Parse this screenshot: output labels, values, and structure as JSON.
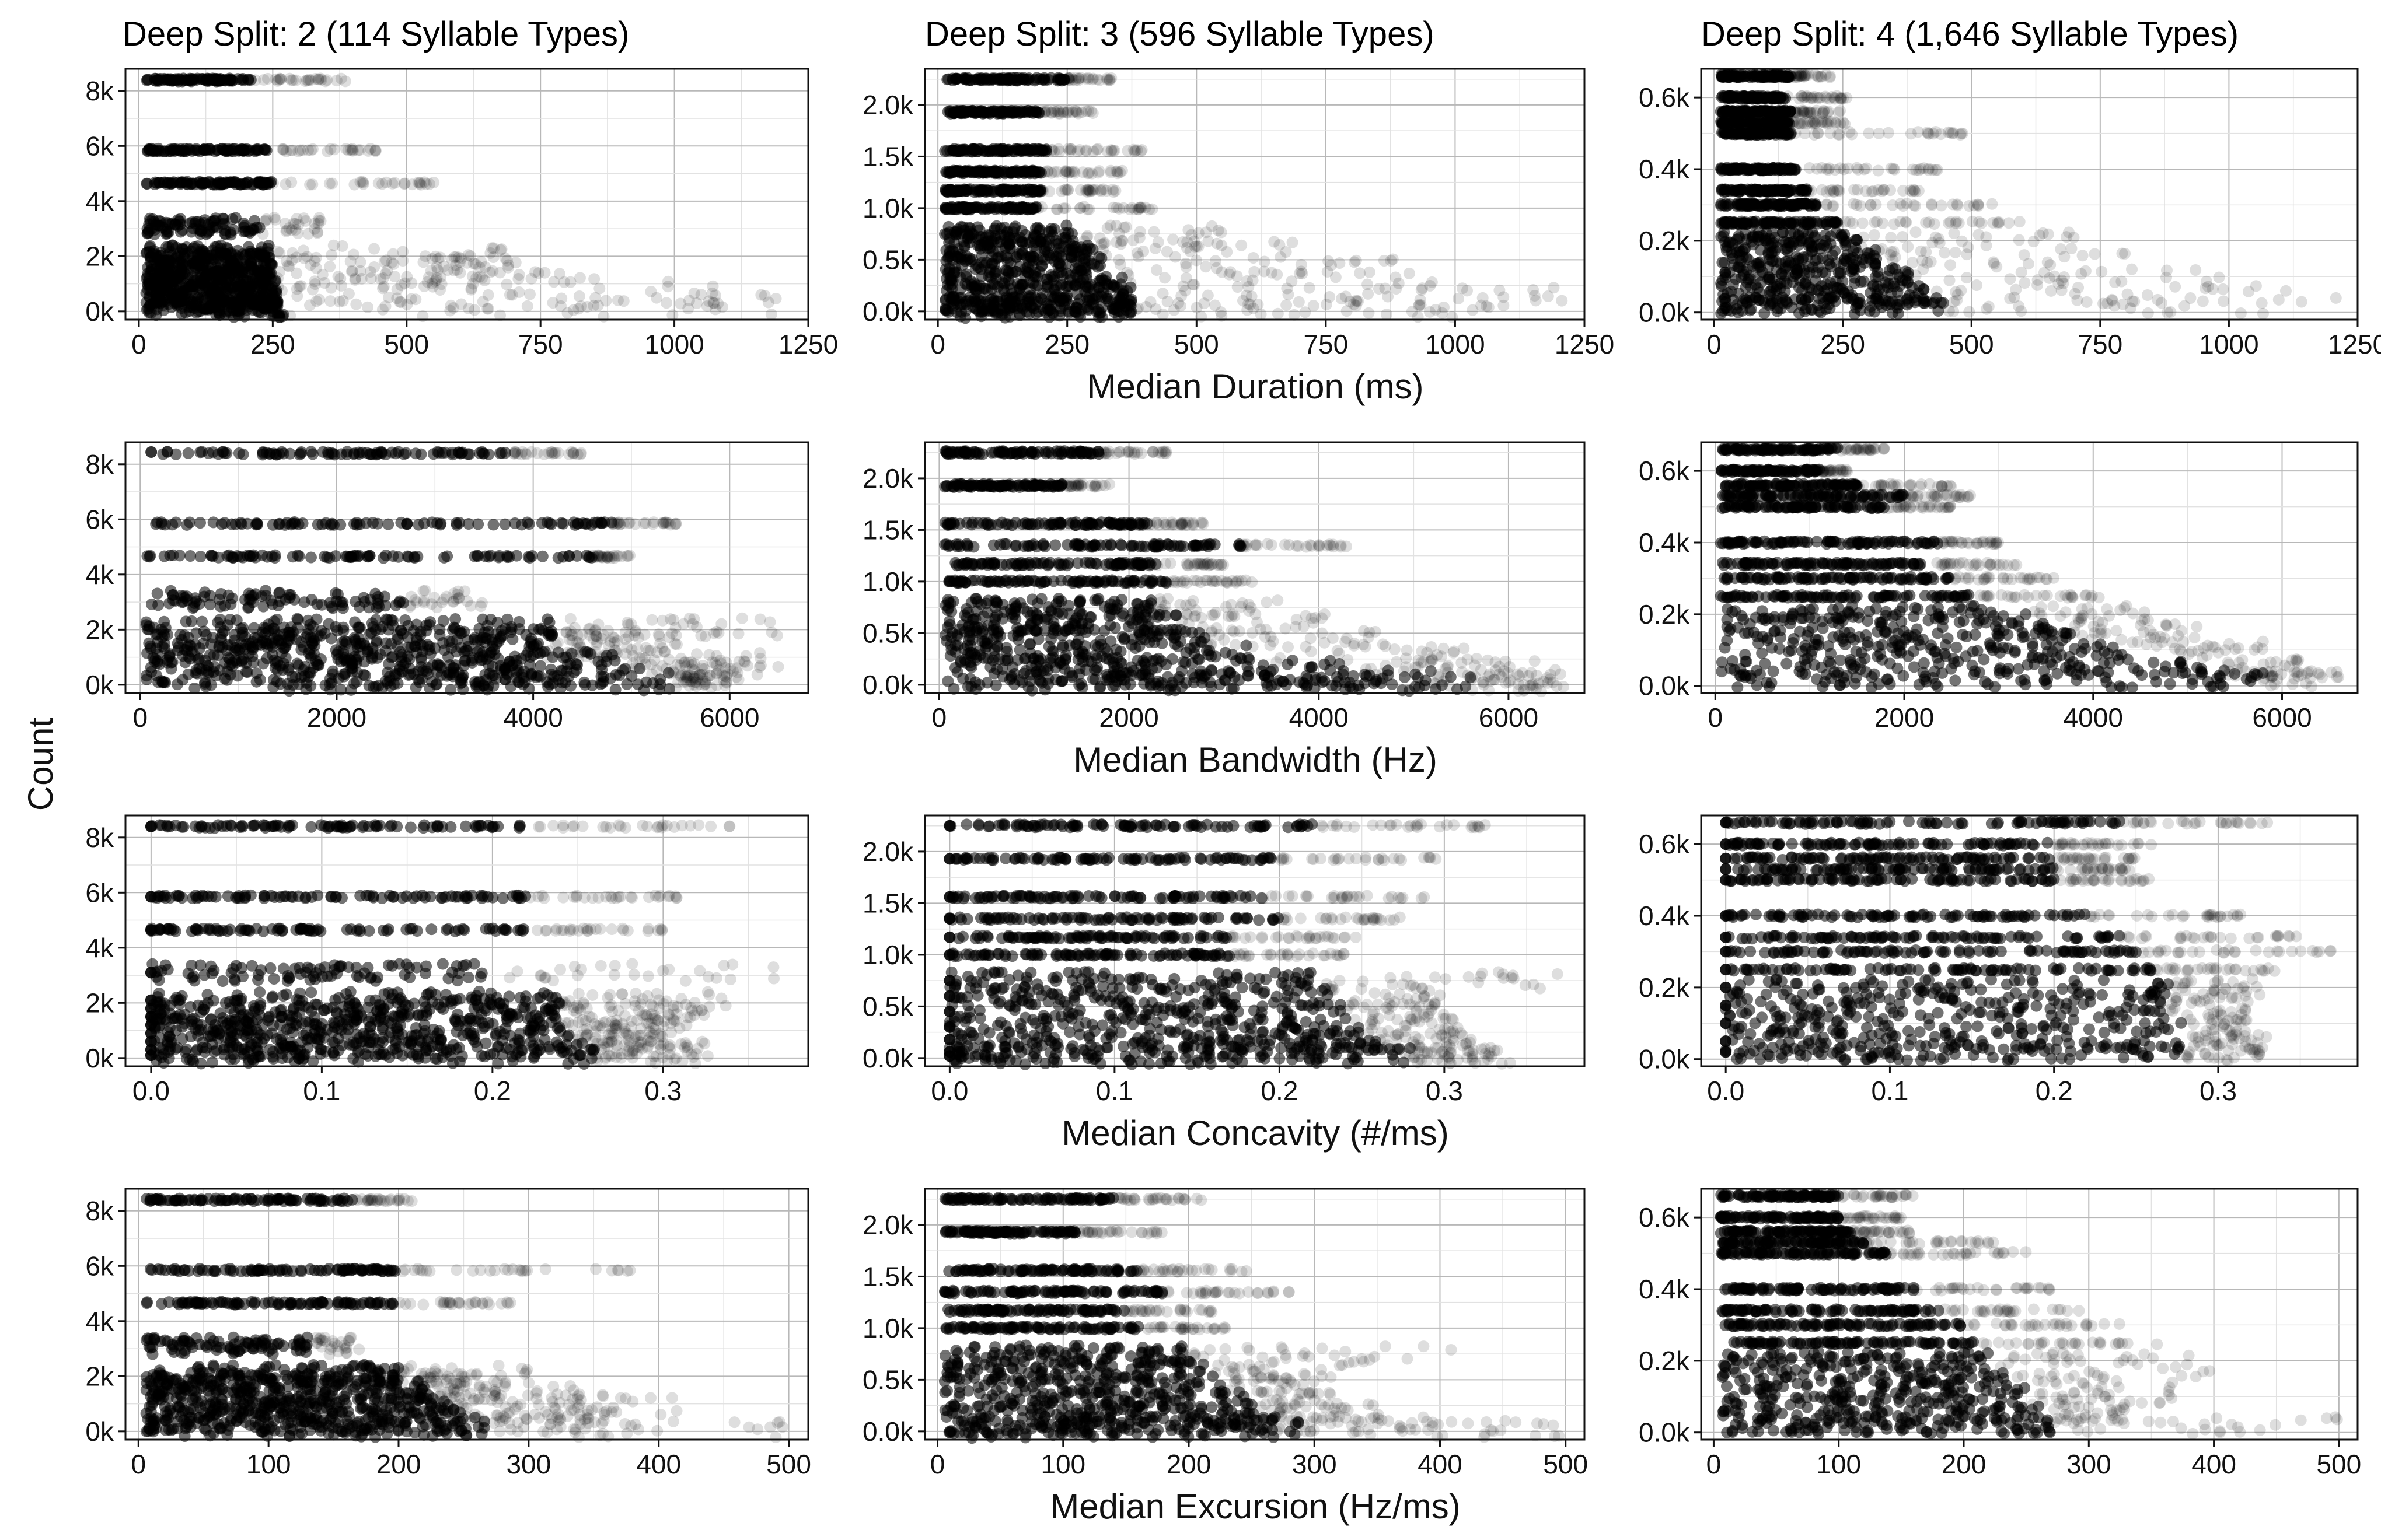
{
  "figure": {
    "column_titles": [
      "Deep Split: 2 (114 Syllable Types)",
      "Deep Split: 3 (596 Syllable Types)",
      "Deep Split: 4 (1,646 Syllable Types)"
    ],
    "row_xlabels": [
      "Median Duration (ms)",
      "Median Bandwidth (Hz)",
      "Median Concavity (#/ms)",
      "Median Excursion (Hz/ms)"
    ],
    "ylabel": "Count"
  },
  "chart_data": [
    {
      "type": "scatter",
      "row": 0,
      "col": 0,
      "title": "Deep Split: 2 (114 Syllable Types)",
      "xlabel": "",
      "ylabel": "Count",
      "xlim": [
        -25,
        1250
      ],
      "ylim": [
        -300,
        8800
      ],
      "x_ticks": [
        0,
        250,
        500,
        750,
        1000,
        1250
      ],
      "x_tick_labels": [
        "0",
        "250",
        "500",
        "750",
        "1000",
        "1250"
      ],
      "y_ticks": [
        0,
        2000,
        4000,
        6000,
        8000
      ],
      "y_tick_labels": [
        "0k",
        "2k",
        "4k",
        "6k",
        "8k"
      ],
      "count_levels": [
        8400,
        5850,
        4650,
        3100,
        2100,
        1800,
        1500,
        1200,
        900,
        600,
        300,
        100
      ],
      "x_max_per_level": [
        390,
        450,
        560,
        340,
        700,
        690,
        720,
        800,
        1000,
        1100,
        1210,
        1200
      ],
      "x_core_per_level": [
        210,
        240,
        250,
        230,
        250,
        250,
        250,
        250,
        260,
        260,
        260,
        270
      ],
      "grid": true
    },
    {
      "type": "scatter",
      "row": 0,
      "col": 1,
      "title": "Deep Split: 3 (596 Syllable Types)",
      "xlabel": "Median Duration (ms)",
      "ylabel": "",
      "xlim": [
        -25,
        1250
      ],
      "ylim": [
        -80,
        2350
      ],
      "x_ticks": [
        0,
        250,
        500,
        750,
        1000,
        1250
      ],
      "x_tick_labels": [
        "0",
        "250",
        "500",
        "750",
        "1000",
        "1250"
      ],
      "y_ticks": [
        0,
        500,
        1000,
        1500,
        2000
      ],
      "y_tick_labels": [
        "0.0k",
        "0.5k",
        "1.0k",
        "1.5k",
        "2.0k"
      ],
      "count_levels": [
        2250,
        1930,
        1560,
        1350,
        1170,
        1000,
        750,
        600,
        450,
        300,
        180,
        60,
        20
      ],
      "x_max_per_level": [
        340,
        300,
        400,
        360,
        350,
        420,
        560,
        700,
        900,
        1000,
        1210,
        1100,
        1000
      ],
      "x_core_per_level": [
        250,
        200,
        210,
        200,
        200,
        190,
        260,
        300,
        320,
        360,
        380,
        380,
        380
      ],
      "grid": true
    },
    {
      "type": "scatter",
      "row": 0,
      "col": 2,
      "title": "Deep Split: 4 (1,646 Syllable Types)",
      "xlabel": "",
      "ylabel": "",
      "xlim": [
        -25,
        1250
      ],
      "ylim": [
        -20,
        680
      ],
      "x_ticks": [
        0,
        250,
        500,
        750,
        1000,
        1250
      ],
      "x_tick_labels": [
        "0",
        "250",
        "500",
        "750",
        "1000",
        "1250"
      ],
      "y_ticks": [
        0,
        200,
        400,
        600
      ],
      "y_tick_labels": [
        "0.0k",
        "0.2k",
        "0.4k",
        "0.6k"
      ],
      "count_levels": [
        660,
        600,
        560,
        530,
        500,
        400,
        340,
        300,
        250,
        200,
        150,
        100,
        50,
        20
      ],
      "x_max_per_level": [
        230,
        260,
        250,
        270,
        490,
        440,
        400,
        540,
        600,
        700,
        850,
        1000,
        1210,
        1100
      ],
      "x_core_per_level": [
        150,
        140,
        150,
        150,
        150,
        160,
        180,
        200,
        240,
        280,
        320,
        380,
        420,
        450
      ],
      "grid": true
    },
    {
      "type": "scatter",
      "row": 1,
      "col": 0,
      "title": "",
      "xlabel": "",
      "ylabel": "Count",
      "xlim": [
        -150,
        6800
      ],
      "ylim": [
        -300,
        8800
      ],
      "x_ticks": [
        0,
        2000,
        4000,
        6000
      ],
      "x_tick_labels": [
        "0",
        "2000",
        "4000",
        "6000"
      ],
      "y_ticks": [
        0,
        2000,
        4000,
        6000,
        8000
      ],
      "y_tick_labels": [
        "0k",
        "2k",
        "4k",
        "6k",
        "8k"
      ],
      "count_levels": [
        8400,
        5850,
        4650,
        3100,
        2100,
        1800,
        1500,
        1200,
        900,
        600,
        300,
        100
      ],
      "x_max_per_level": [
        4500,
        5500,
        5000,
        3500,
        6500,
        6000,
        5500,
        5200,
        6500,
        6300,
        6100,
        6000
      ],
      "x_core_per_level": [
        3800,
        4800,
        4600,
        2700,
        4300,
        4200,
        4200,
        4100,
        5000,
        5200,
        5400,
        5400
      ],
      "grid": true
    },
    {
      "type": "scatter",
      "row": 1,
      "col": 1,
      "title": "",
      "xlabel": "Median Bandwidth (Hz)",
      "ylabel": "",
      "xlim": [
        -150,
        6800
      ],
      "ylim": [
        -80,
        2350
      ],
      "x_ticks": [
        0,
        2000,
        4000,
        6000
      ],
      "x_tick_labels": [
        "0",
        "2000",
        "4000",
        "6000"
      ],
      "y_ticks": [
        0,
        500,
        1000,
        1500,
        2000
      ],
      "y_tick_labels": [
        "0.0k",
        "0.5k",
        "1.0k",
        "1.5k",
        "2.0k"
      ],
      "count_levels": [
        2250,
        1930,
        1560,
        1350,
        1170,
        1000,
        750,
        600,
        450,
        300,
        180,
        60,
        20
      ],
      "x_max_per_level": [
        2400,
        1800,
        2800,
        4300,
        3000,
        3300,
        3600,
        4200,
        4800,
        5600,
        6300,
        6600,
        6500
      ],
      "x_core_per_level": [
        1700,
        1300,
        2200,
        3200,
        2300,
        2400,
        2300,
        2500,
        2800,
        3300,
        4300,
        5200,
        5600
      ],
      "grid": true
    },
    {
      "type": "scatter",
      "row": 1,
      "col": 2,
      "title": "",
      "xlabel": "",
      "ylabel": "",
      "xlim": [
        -150,
        6800
      ],
      "ylim": [
        -20,
        680
      ],
      "x_ticks": [
        0,
        2000,
        4000,
        6000
      ],
      "x_tick_labels": [
        "0",
        "2000",
        "4000",
        "6000"
      ],
      "y_ticks": [
        0,
        200,
        400,
        600
      ],
      "y_tick_labels": [
        "0.0k",
        "0.2k",
        "0.4k",
        "0.6k"
      ],
      "count_levels": [
        660,
        600,
        560,
        530,
        500,
        400,
        340,
        300,
        250,
        200,
        150,
        100,
        50,
        20
      ],
      "x_max_per_level": [
        1800,
        1400,
        2500,
        2700,
        2500,
        3000,
        3200,
        3600,
        4200,
        4600,
        5200,
        5800,
        6300,
        6600
      ],
      "x_core_per_level": [
        1300,
        1100,
        1500,
        2000,
        1800,
        2400,
        2300,
        2500,
        2800,
        3300,
        3800,
        4400,
        5200,
        5800
      ],
      "grid": true
    },
    {
      "type": "scatter",
      "row": 2,
      "col": 0,
      "title": "",
      "xlabel": "",
      "ylabel": "Count",
      "xlim": [
        -0.015,
        0.385
      ],
      "ylim": [
        -300,
        8800
      ],
      "x_ticks": [
        0,
        0.1,
        0.2,
        0.3
      ],
      "x_tick_labels": [
        "0.0",
        "0.1",
        "0.2",
        "0.3"
      ],
      "y_ticks": [
        0,
        2000,
        4000,
        6000,
        8000
      ],
      "y_tick_labels": [
        "0k",
        "2k",
        "4k",
        "6k",
        "8k"
      ],
      "count_levels": [
        8400,
        5850,
        4650,
        3100,
        2100,
        1800,
        1500,
        1200,
        900,
        600,
        300,
        100
      ],
      "x_max_per_level": [
        0.34,
        0.31,
        0.3,
        0.37,
        0.34,
        0.33,
        0.32,
        0.31,
        0.3,
        0.3,
        0.33,
        0.32
      ],
      "x_core_per_level": [
        0.22,
        0.22,
        0.22,
        0.2,
        0.24,
        0.24,
        0.24,
        0.24,
        0.25,
        0.25,
        0.26,
        0.26
      ],
      "grid": true
    },
    {
      "type": "scatter",
      "row": 2,
      "col": 1,
      "title": "",
      "xlabel": "Median Concavity (#/ms)",
      "ylabel": "",
      "xlim": [
        -0.015,
        0.385
      ],
      "ylim": [
        -80,
        2350
      ],
      "x_ticks": [
        0,
        0.1,
        0.2,
        0.3
      ],
      "x_tick_labels": [
        "0.0",
        "0.1",
        "0.2",
        "0.3"
      ],
      "y_ticks": [
        0,
        500,
        1000,
        1500,
        2000
      ],
      "y_tick_labels": [
        "0.0k",
        "0.5k",
        "1.0k",
        "1.5k",
        "2.0k"
      ],
      "count_levels": [
        2250,
        1930,
        1560,
        1350,
        1170,
        1000,
        750,
        600,
        450,
        300,
        180,
        60,
        20
      ],
      "x_max_per_level": [
        0.34,
        0.3,
        0.29,
        0.28,
        0.25,
        0.24,
        0.37,
        0.3,
        0.3,
        0.31,
        0.32,
        0.33,
        0.34
      ],
      "x_core_per_level": [
        0.22,
        0.2,
        0.19,
        0.2,
        0.17,
        0.17,
        0.22,
        0.23,
        0.24,
        0.25,
        0.26,
        0.27,
        0.28
      ],
      "grid": true
    },
    {
      "type": "scatter",
      "row": 2,
      "col": 2,
      "title": "",
      "xlabel": "",
      "ylabel": "",
      "xlim": [
        -0.015,
        0.385
      ],
      "ylim": [
        -20,
        680
      ],
      "x_ticks": [
        0,
        0.1,
        0.2,
        0.3
      ],
      "x_tick_labels": [
        "0.0",
        "0.1",
        "0.2",
        "0.3"
      ],
      "y_ticks": [
        0,
        200,
        400,
        600
      ],
      "y_tick_labels": [
        "0.0k",
        "0.2k",
        "0.4k",
        "0.6k"
      ],
      "count_levels": [
        660,
        600,
        560,
        530,
        500,
        400,
        340,
        300,
        250,
        200,
        150,
        100,
        50,
        20
      ],
      "x_max_per_level": [
        0.33,
        0.26,
        0.25,
        0.25,
        0.26,
        0.32,
        0.35,
        0.37,
        0.34,
        0.33,
        0.32,
        0.32,
        0.33,
        0.33
      ],
      "x_core_per_level": [
        0.24,
        0.2,
        0.2,
        0.2,
        0.2,
        0.22,
        0.24,
        0.25,
        0.26,
        0.27,
        0.27,
        0.28,
        0.28,
        0.28
      ],
      "grid": true
    },
    {
      "type": "scatter",
      "row": 3,
      "col": 0,
      "title": "",
      "xlabel": "",
      "ylabel": "Count",
      "xlim": [
        -10,
        515
      ],
      "ylim": [
        -300,
        8800
      ],
      "x_ticks": [
        0,
        100,
        200,
        300,
        400,
        500
      ],
      "x_tick_labels": [
        "0",
        "100",
        "200",
        "300",
        "400",
        "500"
      ],
      "y_ticks": [
        0,
        2000,
        4000,
        6000,
        8000
      ],
      "y_tick_labels": [
        "0k",
        "2k",
        "4k",
        "6k",
        "8k"
      ],
      "count_levels": [
        8400,
        5850,
        4650,
        3100,
        2100,
        1800,
        1500,
        1200,
        900,
        600,
        300,
        100
      ],
      "x_max_per_level": [
        215,
        380,
        290,
        170,
        300,
        290,
        360,
        340,
        420,
        370,
        360,
        500
      ],
      "x_core_per_level": [
        165,
        200,
        200,
        130,
        200,
        200,
        220,
        230,
        240,
        250,
        260,
        270
      ],
      "grid": true
    },
    {
      "type": "scatter",
      "row": 3,
      "col": 1,
      "title": "",
      "xlabel": "Median Excursion (Hz/ms)",
      "ylabel": "",
      "xlim": [
        -10,
        515
      ],
      "ylim": [
        -80,
        2350
      ],
      "x_ticks": [
        0,
        100,
        200,
        300,
        400,
        500
      ],
      "x_tick_labels": [
        "0",
        "100",
        "200",
        "300",
        "400",
        "500"
      ],
      "y_ticks": [
        0,
        500,
        1000,
        1500,
        2000
      ],
      "y_tick_labels": [
        "0.0k",
        "0.5k",
        "1.0k",
        "1.5k",
        "2.0k"
      ],
      "count_levels": [
        2250,
        1930,
        1560,
        1350,
        1170,
        1000,
        750,
        600,
        450,
        300,
        180,
        60,
        20
      ],
      "x_max_per_level": [
        210,
        180,
        250,
        280,
        220,
        230,
        420,
        340,
        300,
        330,
        360,
        400,
        500
      ],
      "x_core_per_level": [
        140,
        110,
        160,
        180,
        150,
        160,
        200,
        220,
        230,
        250,
        260,
        270,
        290
      ],
      "grid": true
    },
    {
      "type": "scatter",
      "row": 3,
      "col": 2,
      "title": "",
      "xlabel": "",
      "ylabel": "",
      "xlim": [
        -10,
        515
      ],
      "ylim": [
        -20,
        680
      ],
      "x_ticks": [
        0,
        100,
        200,
        300,
        400,
        500
      ],
      "x_tick_labels": [
        "0",
        "100",
        "200",
        "300",
        "400",
        "500"
      ],
      "y_ticks": [
        0,
        200,
        400,
        600
      ],
      "y_tick_labels": [
        "0.0k",
        "0.2k",
        "0.4k",
        "0.6k"
      ],
      "count_levels": [
        660,
        600,
        560,
        530,
        500,
        400,
        340,
        300,
        250,
        200,
        150,
        100,
        50,
        20
      ],
      "x_max_per_level": [
        160,
        150,
        160,
        230,
        250,
        270,
        300,
        330,
        360,
        380,
        400,
        370,
        330,
        500
      ],
      "x_core_per_level": [
        100,
        100,
        110,
        120,
        140,
        160,
        180,
        200,
        210,
        220,
        240,
        250,
        260,
        270
      ],
      "grid": true
    }
  ]
}
